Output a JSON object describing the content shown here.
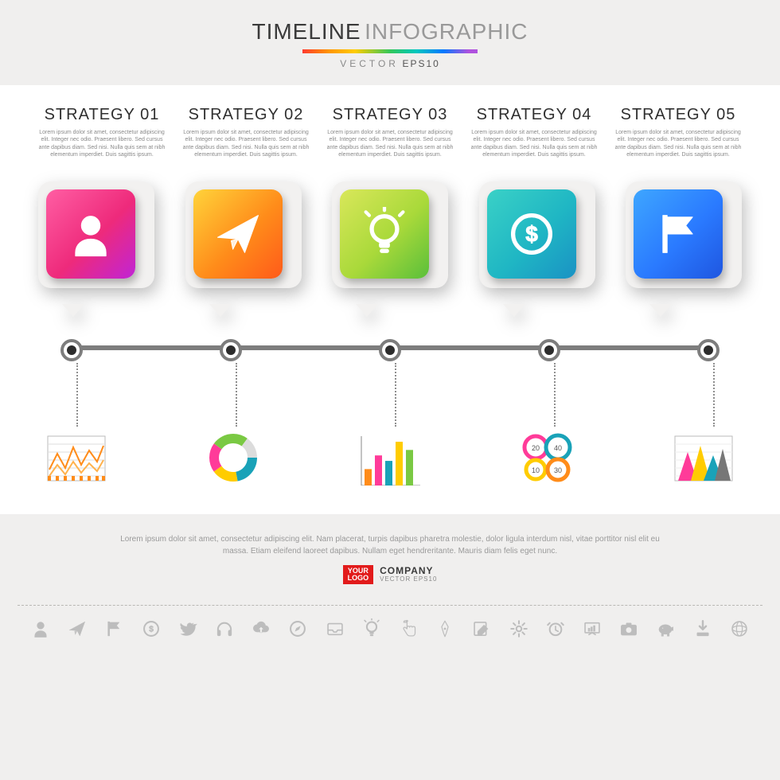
{
  "header": {
    "title_a": "TIMELINE",
    "title_b": "INFOGRAPHIC",
    "subtitle_a": "VECTOR",
    "subtitle_b": "EPS10",
    "rainbow": [
      "#ff3b30",
      "#ff9500",
      "#ffcc00",
      "#34c759",
      "#00c7be",
      "#007aff",
      "#af52de"
    ]
  },
  "lorem": "Lorem ipsum dolor sit amet, consectetur adipiscing elit. Integer nec odio. Praesent libero. Sed cursus ante dapibus diam. Sed nisi. Nulla quis sem at nibh elementum imperdiet. Duis sagittis ipsum.",
  "columns": [
    {
      "title": "STRATEGY 01"
    },
    {
      "title": "STRATEGY 02"
    },
    {
      "title": "STRATEGY 03"
    },
    {
      "title": "STRATEGY 04"
    },
    {
      "title": "STRATEGY 05"
    }
  ],
  "tiles": [
    {
      "name": "person-icon",
      "grad": [
        "#ff5ea3",
        "#ee2a7b",
        "#c024d6"
      ],
      "icon": "person"
    },
    {
      "name": "paper-plane-icon",
      "grad": [
        "#ffd33a",
        "#ff8c1a",
        "#ff5a1a"
      ],
      "icon": "plane"
    },
    {
      "name": "lightbulb-icon",
      "grad": [
        "#d9e75a",
        "#a9d93a",
        "#5abf3a"
      ],
      "icon": "bulb"
    },
    {
      "name": "dollar-icon",
      "grad": [
        "#3ad1c6",
        "#1fb6c4",
        "#1a92c4"
      ],
      "icon": "dollar"
    },
    {
      "name": "flag-icon",
      "grad": [
        "#3ea6ff",
        "#2a7aff",
        "#1f56e0"
      ],
      "icon": "flag"
    }
  ],
  "timeline": {
    "line_color": "#7d7d7d",
    "node_outer": "#7d7d7d",
    "node_inner": "#2c2c2c",
    "node_bg": "#ffffff",
    "dot_color": "#8f8f8f"
  },
  "minicharts": [
    {
      "type": "line-area",
      "axis": "#888888",
      "series": [
        "#ff8c1a",
        "#ffb24d"
      ]
    },
    {
      "type": "donut",
      "colors": [
        "#19a2b8",
        "#ffcc00",
        "#ff3b99",
        "#7ac943",
        "#dcdcdc"
      ]
    },
    {
      "type": "bar",
      "values": [
        30,
        55,
        45,
        80,
        65
      ],
      "colors": [
        "#ff8c1a",
        "#ff3b99",
        "#19a2b8",
        "#ffcc00",
        "#7ac943"
      ]
    },
    {
      "type": "bubble4",
      "labels": [
        "20",
        "40",
        "10",
        "30"
      ],
      "colors": [
        "#ff3b99",
        "#19a2b8",
        "#ffcc00",
        "#ff8c1a"
      ]
    },
    {
      "type": "tri-area",
      "colors": [
        "#ff3b99",
        "#ffcc00",
        "#19a2b8",
        "#777777"
      ]
    }
  ],
  "footer": {
    "text": "Lorem ipsum dolor sit amet, consectetur adipiscing elit. Nam placerat, turpis dapibus pharetra molestie, dolor ligula interdum nisl, vitae porttitor nisl elit eu massa. Etiam eleifend laoreet dapibus. Nullam eget hendreritante. Mauris diam felis eget nunc.",
    "badge": "YOUR\nLOGO",
    "company": "COMPANY",
    "eps": "VECTOR EPS10"
  },
  "iconrow": [
    "person",
    "plane",
    "flag",
    "dollar",
    "bird",
    "headphones",
    "cloud-up",
    "compass",
    "inbox",
    "bulb",
    "touch",
    "pen",
    "edit",
    "gear",
    "alarm",
    "presentation",
    "camera",
    "piggy",
    "download",
    "globe"
  ],
  "style": {
    "page_bg": "#f0efee",
    "main_bg": "#ffffff",
    "marker_bg": "#f2f1f0",
    "text_dark": "#3a3a3a",
    "text_light": "#8a8a8a",
    "icon_row_color": "#bdbdbd"
  }
}
